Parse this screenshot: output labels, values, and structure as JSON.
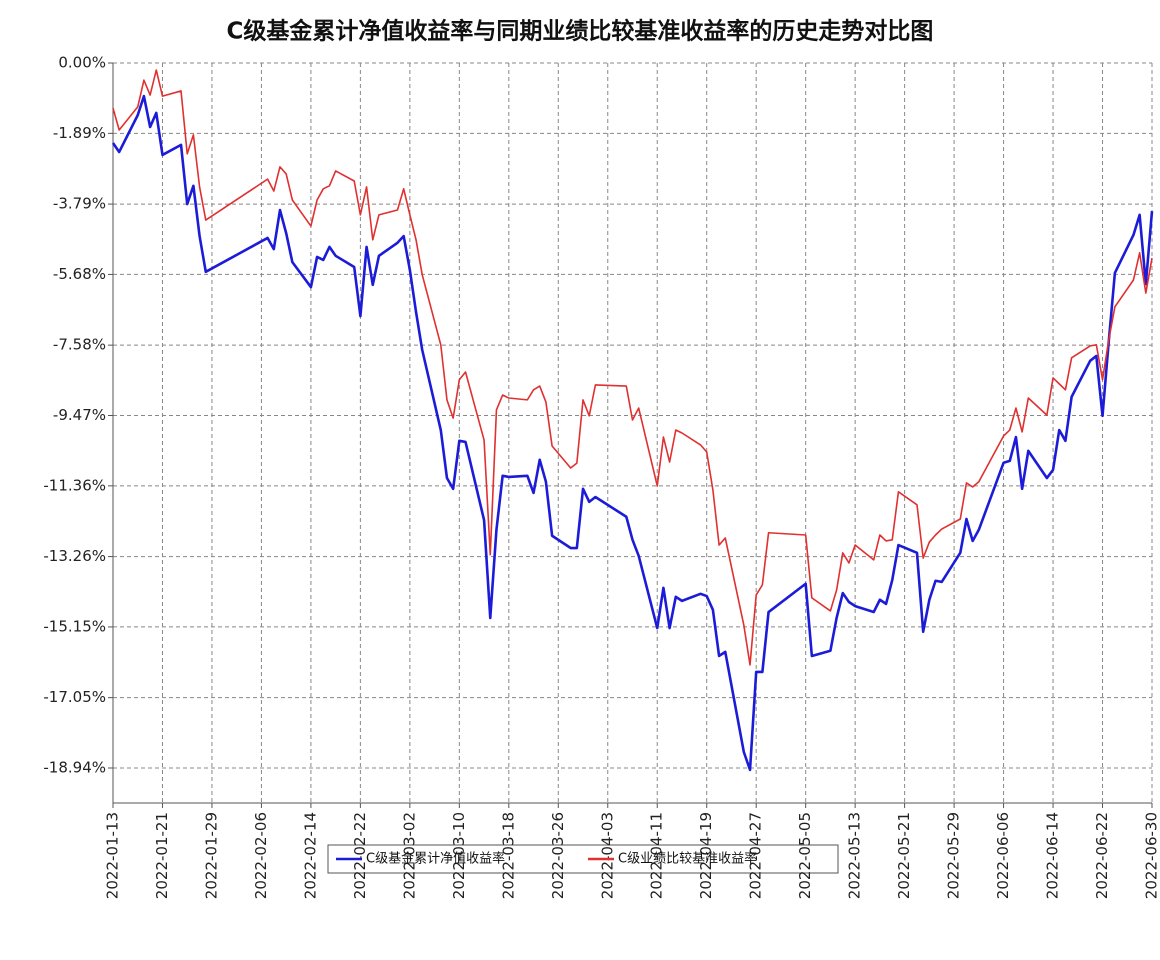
{
  "chart_data": {
    "type": "line",
    "title": "C级基金累计净值收益率与同期业绩比较基准收益率的历史走势对比图",
    "x": [
      "2022-01-13",
      "2022-01-14",
      "2022-01-17",
      "2022-01-18",
      "2022-01-19",
      "2022-01-20",
      "2022-01-21",
      "2022-01-24",
      "2022-01-25",
      "2022-01-26",
      "2022-01-27",
      "2022-01-28",
      "2022-02-07",
      "2022-02-08",
      "2022-02-09",
      "2022-02-10",
      "2022-02-11",
      "2022-02-14",
      "2022-02-15",
      "2022-02-16",
      "2022-02-17",
      "2022-02-18",
      "2022-02-21",
      "2022-02-22",
      "2022-02-23",
      "2022-02-24",
      "2022-02-25",
      "2022-02-28",
      "2022-03-01",
      "2022-03-02",
      "2022-03-03",
      "2022-03-04",
      "2022-03-07",
      "2022-03-08",
      "2022-03-09",
      "2022-03-10",
      "2022-03-11",
      "2022-03-14",
      "2022-03-15",
      "2022-03-16",
      "2022-03-17",
      "2022-03-18",
      "2022-03-21",
      "2022-03-22",
      "2022-03-23",
      "2022-03-24",
      "2022-03-25",
      "2022-03-28",
      "2022-03-29",
      "2022-03-30",
      "2022-03-31",
      "2022-04-01",
      "2022-04-06",
      "2022-04-07",
      "2022-04-08",
      "2022-04-11",
      "2022-04-12",
      "2022-04-13",
      "2022-04-14",
      "2022-04-15",
      "2022-04-18",
      "2022-04-19",
      "2022-04-20",
      "2022-04-21",
      "2022-04-22",
      "2022-04-25",
      "2022-04-26",
      "2022-04-27",
      "2022-04-28",
      "2022-04-29",
      "2022-05-05",
      "2022-05-06",
      "2022-05-09",
      "2022-05-10",
      "2022-05-11",
      "2022-05-12",
      "2022-05-13",
      "2022-05-16",
      "2022-05-17",
      "2022-05-18",
      "2022-05-19",
      "2022-05-20",
      "2022-05-23",
      "2022-05-24",
      "2022-05-25",
      "2022-05-26",
      "2022-05-27",
      "2022-05-30",
      "2022-05-31",
      "2022-06-01",
      "2022-06-02",
      "2022-06-06",
      "2022-06-07",
      "2022-06-08",
      "2022-06-09",
      "2022-06-10",
      "2022-06-13",
      "2022-06-14",
      "2022-06-15",
      "2022-06-16",
      "2022-06-17",
      "2022-06-20",
      "2022-06-21",
      "2022-06-22",
      "2022-06-23",
      "2022-06-24",
      "2022-06-27",
      "2022-06-28",
      "2022-06-29",
      "2022-06-30"
    ],
    "series": [
      {
        "name": "C级基金累计净值收益率",
        "color": "#1c1cd8",
        "values": [
          -2.15,
          -2.39,
          -1.4,
          -0.89,
          -1.72,
          -1.34,
          -2.47,
          -2.2,
          -3.79,
          -3.3,
          -4.65,
          -5.61,
          -4.7,
          -5.0,
          -3.95,
          -4.57,
          -5.35,
          -6.02,
          -5.21,
          -5.29,
          -4.94,
          -5.18,
          -5.48,
          -6.8,
          -4.94,
          -5.96,
          -5.18,
          -4.83,
          -4.65,
          -5.56,
          -6.69,
          -7.71,
          -9.86,
          -11.15,
          -11.44,
          -10.15,
          -10.18,
          -12.28,
          -14.91,
          -12.54,
          -11.09,
          -11.12,
          -11.09,
          -11.55,
          -10.66,
          -11.25,
          -12.7,
          -13.03,
          -13.03,
          -11.44,
          -11.79,
          -11.66,
          -12.19,
          -12.81,
          -13.24,
          -15.18,
          -14.1,
          -15.18,
          -14.34,
          -14.45,
          -14.26,
          -14.32,
          -14.69,
          -15.93,
          -15.82,
          -18.51,
          -18.99,
          -16.36,
          -16.36,
          -14.75,
          -13.99,
          -15.93,
          -15.79,
          -14.91,
          -14.24,
          -14.48,
          -14.59,
          -14.75,
          -14.42,
          -14.53,
          -13.89,
          -12.95,
          -13.16,
          -15.28,
          -14.42,
          -13.91,
          -13.94,
          -13.16,
          -12.25,
          -12.84,
          -12.54,
          -10.74,
          -10.69,
          -10.05,
          -11.44,
          -10.42,
          -11.15,
          -10.93,
          -9.86,
          -10.15,
          -8.97,
          -8.0,
          -7.87,
          -9.48,
          -7.49,
          -5.64,
          -4.62,
          -4.08,
          -5.94,
          -3.98
        ]
      },
      {
        "name": "C级业绩比较基准收益率",
        "color": "#e03030",
        "values": [
          -1.21,
          -1.8,
          -1.18,
          -0.46,
          -0.86,
          -0.19,
          -0.89,
          -0.75,
          -2.44,
          -1.93,
          -3.33,
          -4.22,
          -3.12,
          -3.44,
          -2.79,
          -2.98,
          -3.68,
          -4.38,
          -3.68,
          -3.38,
          -3.3,
          -2.9,
          -3.17,
          -4.08,
          -3.33,
          -4.75,
          -4.08,
          -3.95,
          -3.38,
          -4.08,
          -4.75,
          -5.69,
          -7.57,
          -9.05,
          -9.54,
          -8.51,
          -8.3,
          -10.13,
          -13.21,
          -9.32,
          -8.92,
          -9.0,
          -9.05,
          -8.78,
          -8.68,
          -9.11,
          -10.29,
          -10.88,
          -10.75,
          -9.05,
          -9.48,
          -8.65,
          -8.68,
          -9.59,
          -9.27,
          -11.36,
          -10.05,
          -10.72,
          -9.86,
          -9.94,
          -10.26,
          -10.45,
          -11.47,
          -12.95,
          -12.76,
          -15.1,
          -16.17,
          -14.29,
          -14.02,
          -12.62,
          -12.68,
          -14.37,
          -14.72,
          -14.16,
          -13.16,
          -13.43,
          -12.95,
          -13.35,
          -12.68,
          -12.84,
          -12.81,
          -11.52,
          -11.87,
          -13.3,
          -12.87,
          -12.68,
          -12.52,
          -12.25,
          -11.28,
          -11.39,
          -11.25,
          -10.02,
          -9.86,
          -9.27,
          -9.91,
          -9.0,
          -9.46,
          -8.46,
          -8.62,
          -8.78,
          -7.92,
          -7.6,
          -7.57,
          -8.51,
          -7.44,
          -6.55,
          -5.83,
          -5.1,
          -6.18,
          -5.24
        ]
      }
    ],
    "xlim": [
      "2022-01-13",
      "2022-06-30"
    ],
    "xticks": [
      "2022-01-13",
      "2022-01-21",
      "2022-01-29",
      "2022-02-06",
      "2022-02-14",
      "2022-02-22",
      "2022-03-02",
      "2022-03-10",
      "2022-03-18",
      "2022-03-26",
      "2022-04-03",
      "2022-04-11",
      "2022-04-19",
      "2022-04-27",
      "2022-05-05",
      "2022-05-13",
      "2022-05-21",
      "2022-05-29",
      "2022-06-06",
      "2022-06-14",
      "2022-06-22",
      "2022-06-30"
    ],
    "ylim": [
      -19.88,
      0
    ],
    "yticks": [
      {
        "value": 0,
        "label": "0.00%"
      },
      {
        "value": -1.89,
        "label": "-1.89%"
      },
      {
        "value": -3.79,
        "label": "-3.79%"
      },
      {
        "value": -5.68,
        "label": "-5.68%"
      },
      {
        "value": -7.58,
        "label": "-7.58%"
      },
      {
        "value": -9.47,
        "label": "-9.47%"
      },
      {
        "value": -11.36,
        "label": "-11.36%"
      },
      {
        "value": -13.26,
        "label": "-13.26%"
      },
      {
        "value": -15.15,
        "label": "-15.15%"
      },
      {
        "value": -17.05,
        "label": "-17.05%"
      },
      {
        "value": -18.94,
        "label": "-18.94%"
      }
    ],
    "grid": true
  }
}
